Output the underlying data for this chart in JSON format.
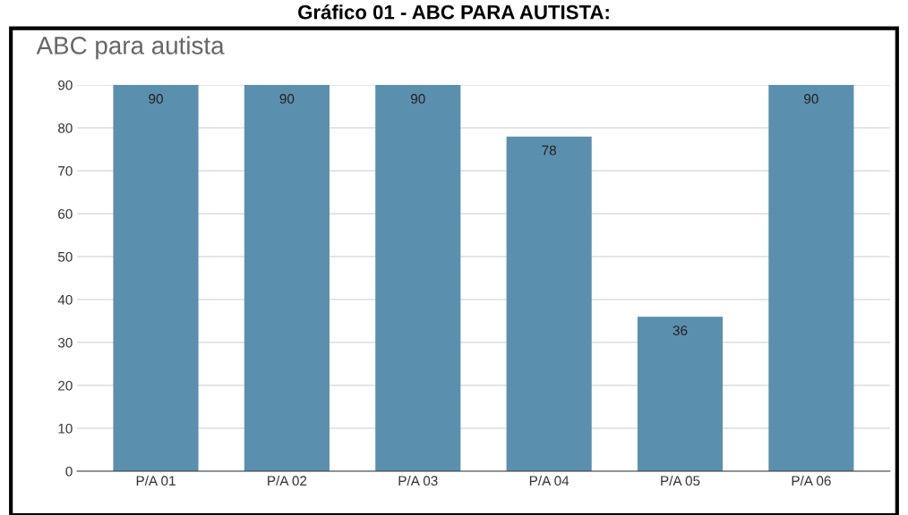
{
  "chart_data": {
    "type": "bar",
    "title": "Gráfico 01 - ABC PARA AUTISTA:",
    "subtitle": "ABC para autista",
    "categories": [
      "P/A 01",
      "P/A 02",
      "P/A 03",
      "P/A 04",
      "P/A 05",
      "P/A 06"
    ],
    "values": [
      90,
      90,
      90,
      78,
      36,
      90
    ],
    "color": "#5b8fae",
    "ylim": [
      0,
      90
    ],
    "yticks": [
      0,
      10,
      20,
      30,
      40,
      50,
      60,
      70,
      80,
      90
    ],
    "grid": "y",
    "data_labels": true
  }
}
